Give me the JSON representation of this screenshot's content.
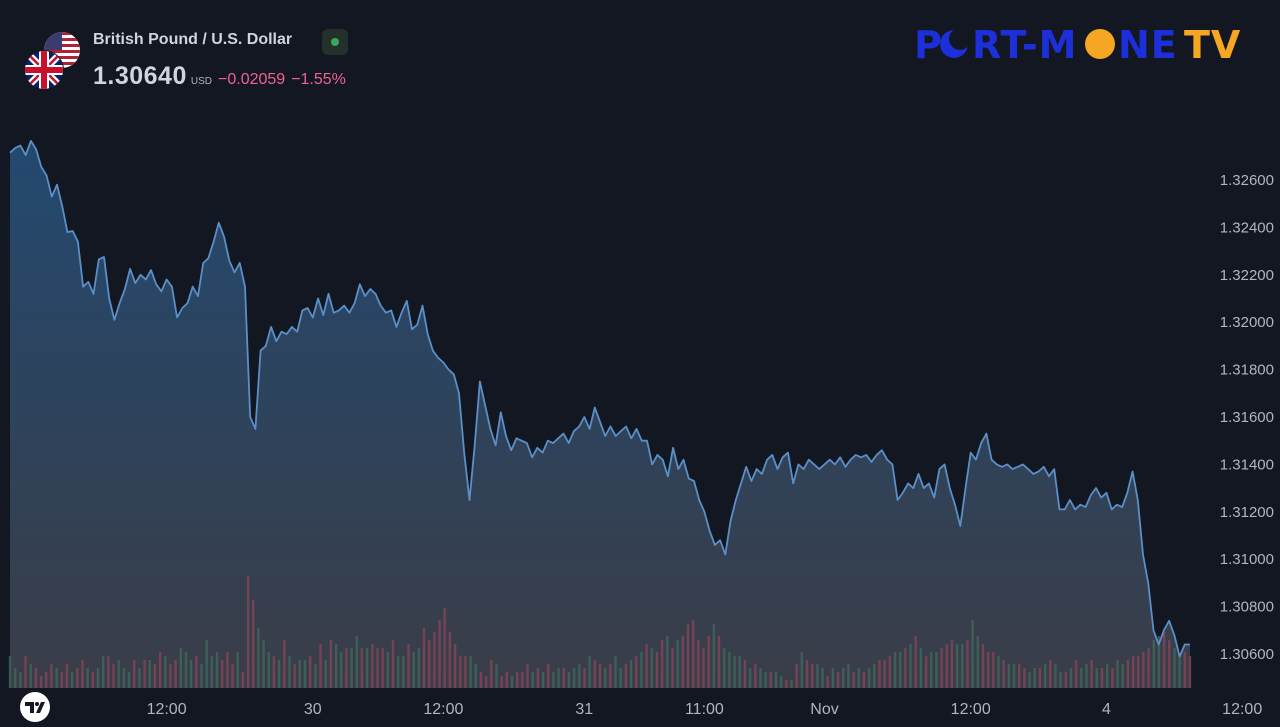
{
  "header": {
    "symbol_name": "British Pound / U.S. Dollar",
    "price": "1.30640",
    "currency": "USD",
    "change": "−0.02059",
    "change_percent": "−1.55%",
    "status": "market-open",
    "status_color": "#3ba55c",
    "base_flag": "gb-flag-icon",
    "quote_flag": "us-flag-icon"
  },
  "brand": {
    "logo_text": "PORT-MONE TV",
    "part1": "P",
    "part2": "RT-M",
    "part3": "NE",
    "part4": "TV",
    "primary_color": "#1c2fd9",
    "accent_color": "#f5a623"
  },
  "colors": {
    "background": "#131722",
    "line": "#5b8fc7",
    "area_top": "#23496f",
    "area_bottom": "#3a3d48",
    "volume_up": "#3d6b5e",
    "volume_down": "#8a4558",
    "axis_text": "#b2b5be"
  },
  "chart_data": {
    "type": "area",
    "symbol": "GBP/USD",
    "price_axis": {
      "position": "right",
      "ticks": [
        "1.32600",
        "1.32400",
        "1.32200",
        "1.32000",
        "1.31800",
        "1.31600",
        "1.31400",
        "1.31200",
        "1.31000",
        "1.30800",
        "1.30600"
      ],
      "tick_values": [
        1.326,
        1.324,
        1.322,
        1.32,
        1.318,
        1.316,
        1.314,
        1.312,
        1.31,
        1.308,
        1.306
      ],
      "range": [
        1.3048,
        1.328
      ]
    },
    "time_axis": {
      "ticks": [
        "12:00",
        "30",
        "12:00",
        "31",
        "11:00",
        "Nov",
        "12:00",
        "4",
        "12:00"
      ],
      "tick_index": [
        30,
        58,
        83,
        110,
        133,
        156,
        184,
        210,
        236
      ]
    },
    "series": [
      {
        "kind": "price",
        "values": [
          1.32715,
          1.32735,
          1.32745,
          1.32705,
          1.32765,
          1.3273,
          1.32655,
          1.3262,
          1.3253,
          1.3258,
          1.3249,
          1.3238,
          1.32385,
          1.3234,
          1.3215,
          1.3217,
          1.3212,
          1.32265,
          1.32275,
          1.321,
          1.3201,
          1.3208,
          1.3214,
          1.32225,
          1.32165,
          1.322,
          1.3218,
          1.3222,
          1.3216,
          1.3213,
          1.3218,
          1.3215,
          1.3202,
          1.3206,
          1.3208,
          1.3215,
          1.3211,
          1.3225,
          1.3227,
          1.3234,
          1.3242,
          1.3236,
          1.3226,
          1.3221,
          1.3225,
          1.3215,
          1.316,
          1.3155,
          1.3188,
          1.319,
          1.3198,
          1.3192,
          1.3196,
          1.3195,
          1.3198,
          1.3196,
          1.3205,
          1.3206,
          1.3202,
          1.321,
          1.3203,
          1.3212,
          1.3204,
          1.3205,
          1.3207,
          1.3204,
          1.3208,
          1.3216,
          1.3211,
          1.3214,
          1.3212,
          1.3207,
          1.3204,
          1.3205,
          1.3198,
          1.3204,
          1.3209,
          1.3197,
          1.3199,
          1.3207,
          1.3195,
          1.3188,
          1.3185,
          1.3183,
          1.318,
          1.3178,
          1.317,
          1.3145,
          1.3125,
          1.3148,
          1.3175,
          1.3165,
          1.3155,
          1.3148,
          1.3162,
          1.3152,
          1.3146,
          1.3151,
          1.315,
          1.3149,
          1.3143,
          1.3147,
          1.3145,
          1.315,
          1.3149,
          1.3151,
          1.3153,
          1.3149,
          1.3154,
          1.3156,
          1.316,
          1.3155,
          1.3164,
          1.3158,
          1.3152,
          1.3156,
          1.3152,
          1.3154,
          1.3156,
          1.3151,
          1.3155,
          1.315,
          1.315,
          1.314,
          1.3144,
          1.3142,
          1.3135,
          1.3147,
          1.3138,
          1.3142,
          1.3134,
          1.3133,
          1.3125,
          1.312,
          1.3112,
          1.3106,
          1.3108,
          1.3102,
          1.3116,
          1.3125,
          1.3132,
          1.3139,
          1.3133,
          1.3138,
          1.3136,
          1.3142,
          1.3144,
          1.3138,
          1.3143,
          1.3145,
          1.3132,
          1.314,
          1.3138,
          1.3142,
          1.314,
          1.3138,
          1.314,
          1.3142,
          1.314,
          1.3143,
          1.3139,
          1.3142,
          1.3144,
          1.3143,
          1.3144,
          1.3141,
          1.3144,
          1.3146,
          1.3142,
          1.314,
          1.3125,
          1.3128,
          1.3132,
          1.313,
          1.3136,
          1.313,
          1.3132,
          1.3126,
          1.3138,
          1.314,
          1.313,
          1.3123,
          1.3114,
          1.313,
          1.3145,
          1.3142,
          1.3149,
          1.3153,
          1.3142,
          1.314,
          1.3139,
          1.314,
          1.3138,
          1.3139,
          1.314,
          1.3138,
          1.3136,
          1.3137,
          1.3139,
          1.3135,
          1.3138,
          1.3121,
          1.3121,
          1.3125,
          1.3121,
          1.3123,
          1.3122,
          1.3127,
          1.313,
          1.3126,
          1.3128,
          1.3121,
          1.3123,
          1.3122,
          1.3128,
          1.3137,
          1.3125,
          1.3102,
          1.309,
          1.307,
          1.3064,
          1.307,
          1.3074,
          1.3068,
          1.3059,
          1.3064,
          1.3064
        ]
      },
      {
        "kind": "volume",
        "values": [
          8,
          5,
          4,
          8,
          6,
          5,
          3,
          4,
          6,
          5,
          4,
          6,
          4,
          5,
          7,
          5,
          4,
          5,
          8,
          8,
          6,
          7,
          5,
          4,
          7,
          5,
          7,
          7,
          6,
          9,
          8,
          6,
          7,
          10,
          9,
          7,
          8,
          6,
          12,
          8,
          9,
          7,
          9,
          6,
          9,
          4,
          28,
          22,
          15,
          12,
          9,
          8,
          7,
          12,
          8,
          6,
          7,
          7,
          8,
          6,
          11,
          7,
          12,
          11,
          9,
          10,
          10,
          13,
          10,
          10,
          11,
          10,
          10,
          9,
          12,
          8,
          8,
          11,
          9,
          10,
          15,
          12,
          14,
          17,
          20,
          14,
          11,
          8,
          8,
          8,
          6,
          4,
          3,
          7,
          6,
          3,
          4,
          3,
          4,
          4,
          6,
          4,
          5,
          4,
          6,
          4,
          5,
          5,
          4,
          5,
          6,
          5,
          8,
          7,
          6,
          5,
          6,
          8,
          5,
          6,
          7,
          8,
          9,
          11,
          10,
          9,
          12,
          13,
          10,
          12,
          13,
          16,
          17,
          12,
          10,
          13,
          16,
          13,
          10,
          9,
          8,
          8,
          7,
          5,
          6,
          5,
          4,
          4,
          4,
          3,
          2,
          2,
          6,
          9,
          7,
          6,
          6,
          5,
          3,
          5,
          4,
          5,
          6,
          4,
          5,
          4,
          5,
          6,
          7,
          7,
          8,
          9,
          9,
          10,
          11,
          13,
          10,
          8,
          9,
          9,
          10,
          11,
          12,
          11,
          11,
          12,
          17,
          13,
          11,
          9,
          9,
          8,
          7,
          6,
          6,
          6,
          5,
          4,
          5,
          5,
          6,
          7,
          6,
          4,
          4,
          5,
          7,
          5,
          6,
          7,
          5,
          5,
          6,
          5,
          7,
          6,
          7,
          8,
          8,
          9,
          10,
          12,
          13,
          14,
          12,
          10,
          8,
          9,
          8
        ]
      }
    ]
  }
}
